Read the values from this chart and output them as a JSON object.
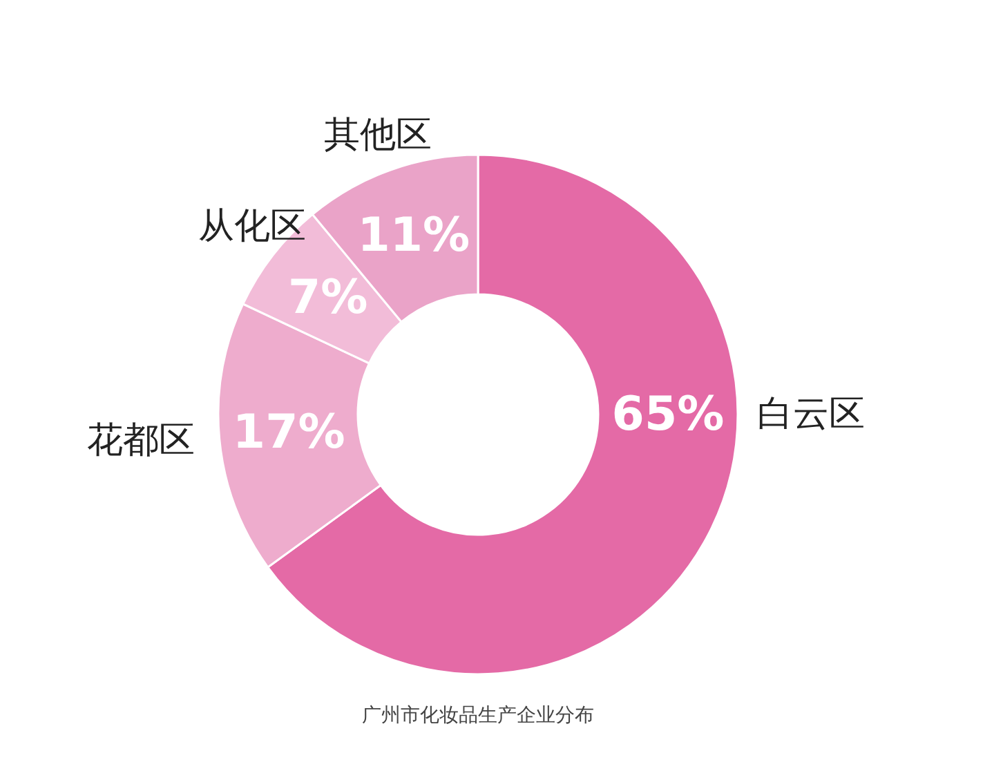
{
  "chart_data": {
    "type": "donut",
    "categories": [
      "白云区",
      "花都区",
      "从化区",
      "其他区"
    ],
    "values": [
      65,
      17,
      7,
      11
    ],
    "colors": [
      "#e46aa6",
      "#eeaccd",
      "#f2bcd8",
      "#eaa3c8"
    ],
    "value_labels": [
      "65%",
      "17%",
      "7%",
      "11%"
    ],
    "annotations": [
      "广州市化妆品生产企业分布"
    ]
  }
}
